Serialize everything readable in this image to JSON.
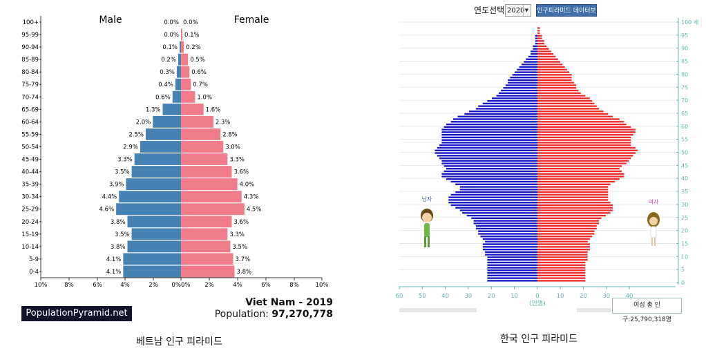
{
  "left": {
    "caption": "베트남 인구 피라미드",
    "brand": "PopulationPyramid.net",
    "country_title": "Viet Nam - 2019",
    "population_label": "Population:",
    "population_value": "97,270,778",
    "colors": {
      "male": "#4682b4",
      "female": "#f07b89"
    }
  },
  "right": {
    "caption": "한국 인구 피라미드",
    "year_select_label": "연도선택:",
    "year_value": "2020",
    "data_button": "인구피라미드 데이터보기",
    "male_label": "남자",
    "female_label": "여자",
    "unit_label": "(만명)",
    "total_female_label": "여성 총 인구:25,790,318명",
    "colors": {
      "male": "#1515c8",
      "female": "#ef2a2a",
      "axis": "#5fb8b0"
    }
  },
  "chart_data": [
    {
      "type": "bar",
      "orientation": "horizontal-pyramid",
      "categories": [
        "0-4",
        "5-9",
        "10-14",
        "15-19",
        "20-24",
        "25-29",
        "30-34",
        "35-39",
        "40-44",
        "45-49",
        "50-54",
        "55-59",
        "60-64",
        "65-69",
        "70-74",
        "75-79",
        "80-84",
        "85-89",
        "90-94",
        "95-99",
        "100+"
      ],
      "series": [
        {
          "name": "Male",
          "values": [
            4.1,
            4.1,
            3.8,
            3.5,
            3.8,
            4.6,
            4.4,
            3.9,
            3.5,
            3.3,
            2.9,
            2.5,
            2.0,
            1.3,
            0.6,
            0.4,
            0.3,
            0.2,
            0.1,
            0.0,
            0.0
          ]
        },
        {
          "name": "Female",
          "values": [
            3.8,
            3.7,
            3.5,
            3.3,
            3.6,
            4.5,
            4.3,
            4.0,
            3.6,
            3.3,
            3.0,
            2.8,
            2.3,
            1.6,
            1.0,
            0.7,
            0.6,
            0.5,
            0.2,
            0.1,
            0.0
          ]
        }
      ],
      "xticks": [
        "10%",
        "8%",
        "6%",
        "4%",
        "2%",
        "0%",
        "0%",
        "2%",
        "4%",
        "6%",
        "8%",
        "10%"
      ],
      "xlim": [
        -10,
        10
      ]
    },
    {
      "type": "bar",
      "orientation": "horizontal-pyramid",
      "age_range": [
        0,
        100
      ],
      "x_unit": "만명",
      "xticks": [
        "60",
        "50",
        "40",
        "30",
        "20",
        "10",
        "0",
        "10",
        "20",
        "30",
        "40"
      ],
      "yticks": [
        "0",
        "5",
        "10",
        "15",
        "20",
        "25",
        "30",
        "35",
        "40",
        "45",
        "50",
        "55",
        "60",
        "65",
        "70",
        "75",
        "80",
        "85",
        "90",
        "95",
        "100 세"
      ],
      "series": [
        {
          "name": "남자",
          "values": [
            22,
            22,
            22,
            22,
            22,
            22,
            22,
            22,
            22,
            22,
            23,
            23,
            24,
            24,
            24,
            23,
            24,
            25,
            26,
            26,
            27,
            27,
            28,
            28,
            29,
            31,
            33,
            34,
            36,
            38,
            39,
            39,
            39,
            38,
            36,
            34,
            34,
            36,
            38,
            40,
            42,
            42,
            41,
            40,
            41,
            42,
            42,
            43,
            44,
            45,
            45,
            44,
            43,
            42,
            42,
            42,
            42,
            42,
            42,
            41,
            40,
            38,
            37,
            35,
            32,
            30,
            27,
            26,
            24,
            22,
            20,
            18,
            17,
            16,
            15,
            14,
            13,
            13,
            12,
            11,
            10,
            9,
            8,
            7,
            6,
            5,
            4,
            3,
            3,
            2,
            2,
            1,
            1,
            1,
            1,
            0,
            0,
            0,
            0,
            0,
            0
          ]
        },
        {
          "name": "여자",
          "values": [
            21,
            21,
            21,
            21,
            21,
            21,
            21,
            21,
            22,
            22,
            22,
            22,
            23,
            23,
            23,
            22,
            23,
            24,
            25,
            25,
            26,
            26,
            27,
            27,
            28,
            30,
            32,
            33,
            33,
            33,
            32,
            31,
            31,
            31,
            31,
            31,
            31,
            32,
            34,
            36,
            38,
            38,
            37,
            36,
            37,
            39,
            40,
            41,
            42,
            43,
            44,
            43,
            41,
            41,
            41,
            41,
            42,
            43,
            43,
            41,
            39,
            38,
            36,
            33,
            31,
            29,
            27,
            26,
            25,
            24,
            23,
            21,
            19,
            18,
            17,
            17,
            16,
            15,
            15,
            15,
            14,
            13,
            12,
            11,
            10,
            9,
            8,
            7,
            6,
            5,
            4,
            3,
            3,
            2,
            2,
            1,
            1,
            1,
            0,
            0,
            0
          ]
        }
      ]
    }
  ]
}
